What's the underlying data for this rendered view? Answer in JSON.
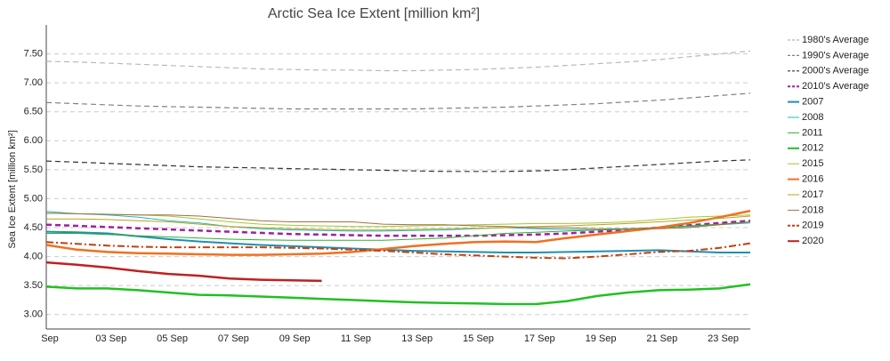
{
  "chart_data": {
    "type": "line",
    "title": "Arctic Sea Ice Extent [million km²]",
    "y_label": "Sea Ice Extent [million km²]",
    "categories": [
      "Sep",
      null,
      "03 Sep",
      null,
      "05 Sep",
      null,
      "07 Sep",
      null,
      "09 Sep",
      null,
      "11 Sep",
      null,
      "13 Sep",
      null,
      "15 Sep",
      null,
      "17 Sep",
      null,
      "19 Sep",
      null,
      "21 Sep",
      null,
      "23 Sep",
      null
    ],
    "ylim": [
      2.75,
      8.0
    ],
    "yticks": [
      {
        "value": 3,
        "label": "3.00"
      },
      {
        "value": 3.5,
        "label": "3.50"
      },
      {
        "value": 4,
        "label": "4.00"
      },
      {
        "value": 4.5,
        "label": "4.50"
      },
      {
        "value": 5,
        "label": "5.00"
      },
      {
        "value": 5.5,
        "label": "5.50"
      },
      {
        "value": 6,
        "label": "6.00"
      },
      {
        "value": 6.5,
        "label": "6.50"
      },
      {
        "value": 7,
        "label": "7.00"
      },
      {
        "value": 7.5,
        "label": "7.50"
      }
    ],
    "grid": true,
    "legend": "right",
    "series": [
      {
        "name": "1980's Average",
        "color": "#b8b8b8",
        "style": "dashed",
        "width": 1.2,
        "values": [
          7.37,
          7.36,
          7.34,
          7.32,
          7.3,
          7.28,
          7.26,
          7.24,
          7.23,
          7.22,
          7.22,
          7.21,
          7.21,
          7.22,
          7.23,
          7.25,
          7.27,
          7.3,
          7.33,
          7.36,
          7.4,
          7.45,
          7.5,
          7.55
        ]
      },
      {
        "name": "1990's Average",
        "color": "#808080",
        "style": "dashed",
        "width": 1.2,
        "values": [
          6.66,
          6.64,
          6.62,
          6.6,
          6.59,
          6.58,
          6.57,
          6.56,
          6.55,
          6.55,
          6.55,
          6.55,
          6.55,
          6.56,
          6.57,
          6.58,
          6.6,
          6.62,
          6.64,
          6.67,
          6.7,
          6.74,
          6.78,
          6.82
        ]
      },
      {
        "name": "2000's Average",
        "color": "#333333",
        "style": "dashed",
        "width": 1.2,
        "values": [
          5.65,
          5.63,
          5.61,
          5.59,
          5.57,
          5.55,
          5.54,
          5.53,
          5.52,
          5.51,
          5.5,
          5.49,
          5.48,
          5.47,
          5.47,
          5.47,
          5.48,
          5.5,
          5.53,
          5.56,
          5.59,
          5.62,
          5.65,
          5.67
        ]
      },
      {
        "name": "2010's Average",
        "color": "#a020a0",
        "style": "dashed",
        "width": 2.5,
        "values": [
          4.55,
          4.53,
          4.51,
          4.49,
          4.47,
          4.45,
          4.43,
          4.41,
          4.39,
          4.38,
          4.37,
          4.36,
          4.36,
          4.36,
          4.36,
          4.37,
          4.38,
          4.4,
          4.43,
          4.46,
          4.5,
          4.54,
          4.58,
          4.62
        ]
      },
      {
        "name": "2007",
        "color": "#1f8fb0",
        "style": "solid",
        "width": 2,
        "values": [
          4.43,
          4.42,
          4.4,
          4.35,
          4.3,
          4.26,
          4.23,
          4.2,
          4.18,
          4.16,
          4.14,
          4.12,
          4.1,
          4.09,
          4.08,
          4.07,
          4.07,
          4.08,
          4.09,
          4.1,
          4.11,
          4.09,
          4.07,
          4.07
        ]
      },
      {
        "name": "2008",
        "color": "#20b8c0",
        "style": "solid",
        "width": 1,
        "values": [
          4.78,
          4.74,
          4.72,
          4.68,
          4.62,
          4.58,
          4.52,
          4.48,
          4.46,
          4.45,
          4.44,
          4.44,
          4.45,
          4.46,
          4.48,
          4.5,
          4.48,
          4.47,
          4.46,
          4.47,
          4.5,
          4.52,
          4.55,
          4.58
        ]
      },
      {
        "name": "2011",
        "color": "#30b030",
        "style": "solid",
        "width": 1,
        "values": [
          4.4,
          4.4,
          4.38,
          4.36,
          4.34,
          4.32,
          4.3,
          4.29,
          4.28,
          4.28,
          4.28,
          4.28,
          4.3,
          4.32,
          4.36,
          4.4,
          4.42,
          4.44,
          4.46,
          4.48,
          4.5,
          4.53,
          4.56,
          4.6
        ]
      },
      {
        "name": "2012",
        "color": "#22c022",
        "style": "solid",
        "width": 2.5,
        "values": [
          3.48,
          3.45,
          3.45,
          3.42,
          3.38,
          3.34,
          3.33,
          3.31,
          3.29,
          3.27,
          3.25,
          3.23,
          3.21,
          3.2,
          3.19,
          3.18,
          3.18,
          3.23,
          3.32,
          3.38,
          3.42,
          3.43,
          3.45,
          3.52
        ]
      },
      {
        "name": "2015",
        "color": "#a0c830",
        "style": "solid",
        "width": 1,
        "values": [
          4.75,
          4.74,
          4.73,
          4.72,
          4.7,
          4.65,
          4.6,
          4.56,
          4.54,
          4.53,
          4.52,
          4.52,
          4.53,
          4.54,
          4.55,
          4.56,
          4.57,
          4.57,
          4.58,
          4.6,
          4.64,
          4.68,
          4.7,
          4.72
        ]
      },
      {
        "name": "2016",
        "color": "#f07020",
        "style": "solid",
        "width": 2.5,
        "values": [
          4.2,
          4.12,
          4.08,
          4.06,
          4.05,
          4.04,
          4.03,
          4.03,
          4.04,
          4.05,
          4.08,
          4.13,
          4.18,
          4.22,
          4.25,
          4.26,
          4.25,
          4.32,
          4.38,
          4.44,
          4.5,
          4.58,
          4.68,
          4.79
        ]
      },
      {
        "name": "2017",
        "color": "#c0a020",
        "style": "solid",
        "width": 1,
        "values": [
          4.65,
          4.65,
          4.64,
          4.62,
          4.6,
          4.56,
          4.52,
          4.5,
          4.48,
          4.47,
          4.46,
          4.46,
          4.47,
          4.48,
          4.49,
          4.5,
          4.52,
          4.53,
          4.55,
          4.57,
          4.6,
          4.63,
          4.66,
          4.7
        ]
      },
      {
        "name": "2018",
        "color": "#a07040",
        "style": "solid",
        "width": 1,
        "values": [
          4.75,
          4.74,
          4.73,
          4.72,
          4.72,
          4.7,
          4.66,
          4.62,
          4.6,
          4.6,
          4.6,
          4.56,
          4.55,
          4.55,
          4.53,
          4.52,
          4.5,
          4.5,
          4.48,
          4.48,
          4.48,
          4.5,
          4.55,
          4.6
        ]
      },
      {
        "name": "2019",
        "color": "#c04010",
        "style": "dashdot",
        "width": 2,
        "values": [
          4.25,
          4.22,
          4.19,
          4.17,
          4.16,
          4.16,
          4.16,
          4.16,
          4.15,
          4.14,
          4.12,
          4.1,
          4.07,
          4.04,
          4.02,
          4.0,
          3.98,
          3.97,
          4.0,
          4.04,
          4.08,
          4.1,
          4.15,
          4.23
        ]
      },
      {
        "name": "2020",
        "color": "#c02020",
        "style": "solid",
        "width": 2.5,
        "values": [
          3.9,
          3.86,
          3.81,
          3.75,
          3.7,
          3.67,
          3.62,
          3.6,
          3.59,
          3.58,
          null,
          null,
          null,
          null,
          null,
          null,
          null,
          null,
          null,
          null,
          null,
          null,
          null,
          null
        ]
      }
    ]
  }
}
